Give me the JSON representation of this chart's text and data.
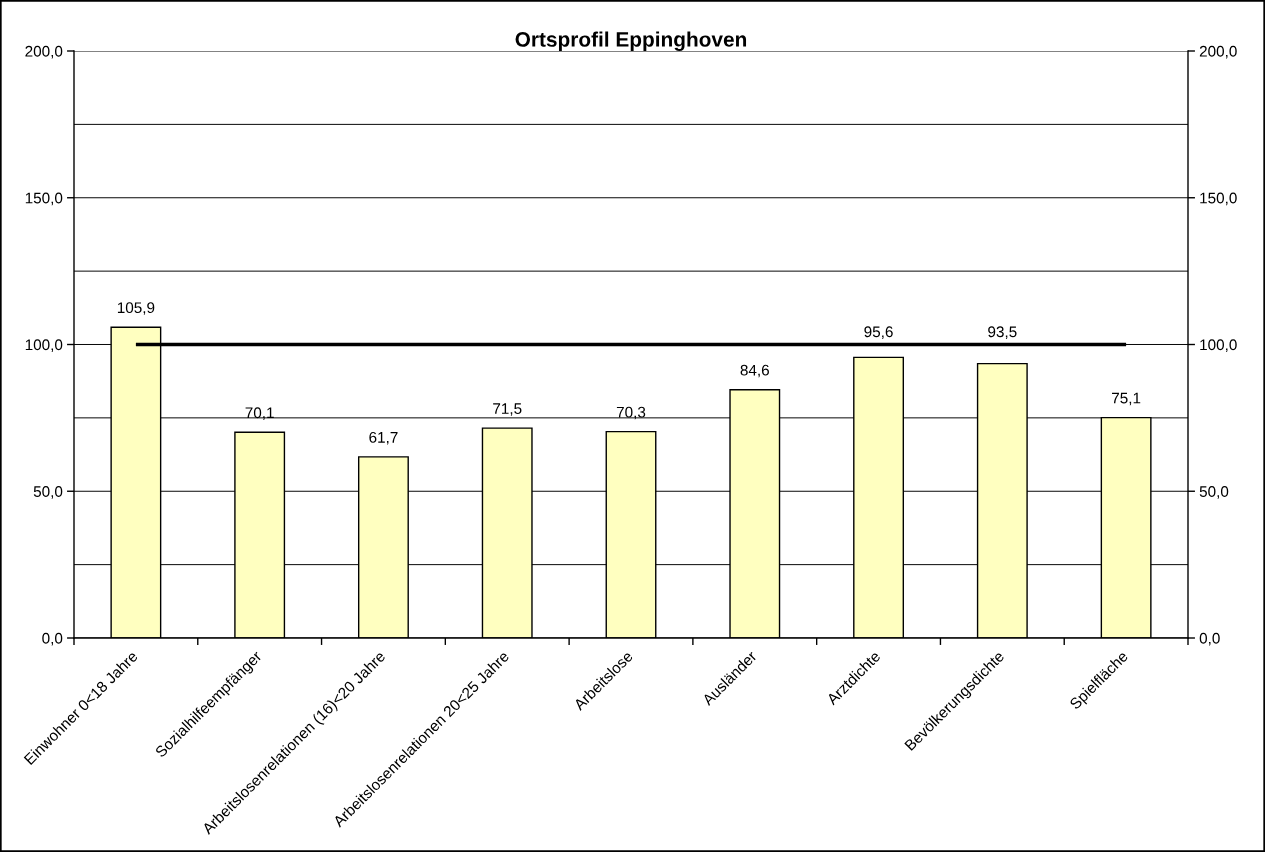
{
  "chart_data": {
    "type": "bar",
    "title": "Ortsprofil Eppinghoven",
    "categories": [
      "Einwohner 0<18 Jahre",
      "Sozialhilfeempfänger",
      "Arbeitslosenrelationen (16)<20 Jahre",
      "Arbeitslosenrelationen 20<25 Jahre",
      "Arbeitslose",
      "Ausländer",
      "Arztdichte",
      "Bevölkerungsdichte",
      "Spielfläche"
    ],
    "values": [
      105.9,
      70.1,
      61.7,
      71.5,
      70.3,
      84.6,
      95.6,
      93.5,
      75.1
    ],
    "value_labels": [
      "105,9",
      "70,1",
      "61,7",
      "71,5",
      "70,3",
      "84,6",
      "95,6",
      "93,5",
      "75,1"
    ],
    "color": "#ffffc0",
    "ylim": [
      0,
      200
    ],
    "yticks": [
      {
        "value": 0,
        "label": "0,0"
      },
      {
        "value": 25,
        "label": null
      },
      {
        "value": 50,
        "label": "50,0"
      },
      {
        "value": 75,
        "label": null
      },
      {
        "value": 100,
        "label": "100,0"
      },
      {
        "value": 125,
        "label": null
      },
      {
        "value": 150,
        "label": "150,0"
      },
      {
        "value": 175,
        "label": null
      },
      {
        "value": 200,
        "label": "200,0"
      }
    ],
    "y2lim": [
      0,
      200
    ],
    "y2ticks": [
      {
        "value": 0,
        "label": "0,0"
      },
      {
        "value": 25,
        "label": null
      },
      {
        "value": 50,
        "label": "50,0"
      },
      {
        "value": 75,
        "label": null
      },
      {
        "value": 100,
        "label": "100,0"
      },
      {
        "value": 125,
        "label": null
      },
      {
        "value": 150,
        "label": "150,0"
      },
      {
        "value": 175,
        "label": null
      },
      {
        "value": 200,
        "label": "200,0"
      }
    ],
    "ref_lines": [
      {
        "axis": "y",
        "value": 100,
        "color": "#000000"
      }
    ],
    "grid": "y"
  }
}
